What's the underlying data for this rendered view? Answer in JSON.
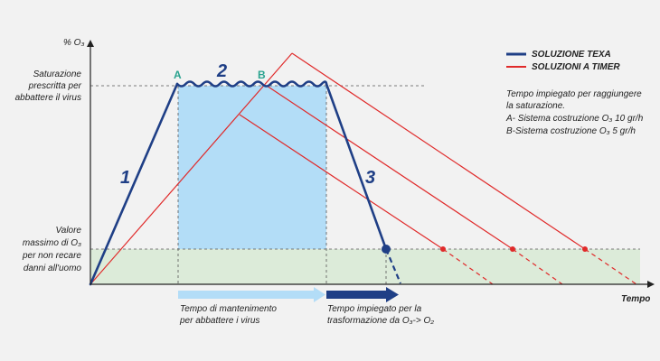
{
  "axes": {
    "y_title": "% O₃",
    "x_title": "Tempo"
  },
  "y_labels": {
    "saturation": [
      "Saturazione",
      "prescritta per",
      "abbattere il virus"
    ],
    "max_safe": [
      "Valore",
      "massimo di O₃",
      "per non recare",
      "danni all'uomo"
    ]
  },
  "legend": {
    "texa": {
      "label": "SOLUZIONE TEXA",
      "color": "#1f3f86"
    },
    "timer": {
      "label": "SOLUZIONI A TIMER",
      "color": "#e02a2a"
    }
  },
  "note": [
    "Tempo impiegato per raggiungere",
    "la saturazione.",
    "A- Sistema costruzione O₃ 10 gr/h",
    "B-Sistema costruzione O₃ 5 gr/h"
  ],
  "markers": {
    "phase_1": "1",
    "phase_2": "2",
    "phase_3": "3",
    "point_a": "A",
    "point_b": "B"
  },
  "bottom_labels": {
    "maintenance": [
      "Tempo di mantenimento",
      "per abbattere i virus"
    ],
    "transformation": [
      "Tempo impiegato per la",
      "trasformazione da O₃-> O₂"
    ]
  },
  "colors": {
    "saturation_fill": "#b3ddf7",
    "safe_fill": "#dcebd9",
    "arrow_light": "#b3ddf7",
    "arrow_dark": "#1f3f86",
    "point_label": "#2aa38f"
  }
}
